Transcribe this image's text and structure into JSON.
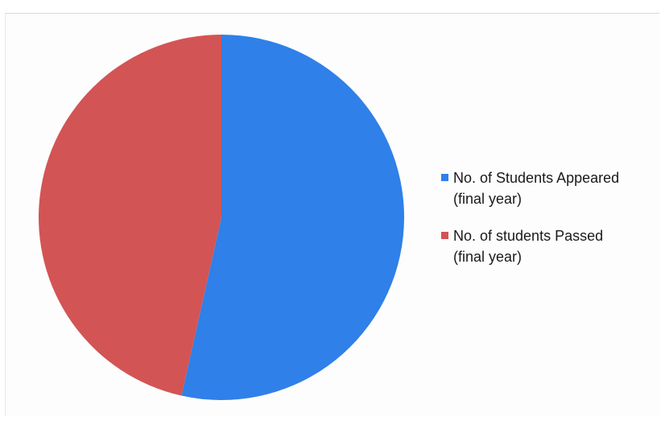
{
  "chart_data": {
    "type": "pie",
    "title": "",
    "start_angle_deg": 0,
    "direction": "clockwise",
    "series": [
      {
        "name": "No. of Students Appeared",
        "name_line2": "(final year)",
        "value": 53.5,
        "color": "#2f80e8"
      },
      {
        "name": "No. of students Passed",
        "name_line2": "(final year)",
        "value": 46.5,
        "color": "#d35454"
      }
    ],
    "legend_position": "right"
  }
}
